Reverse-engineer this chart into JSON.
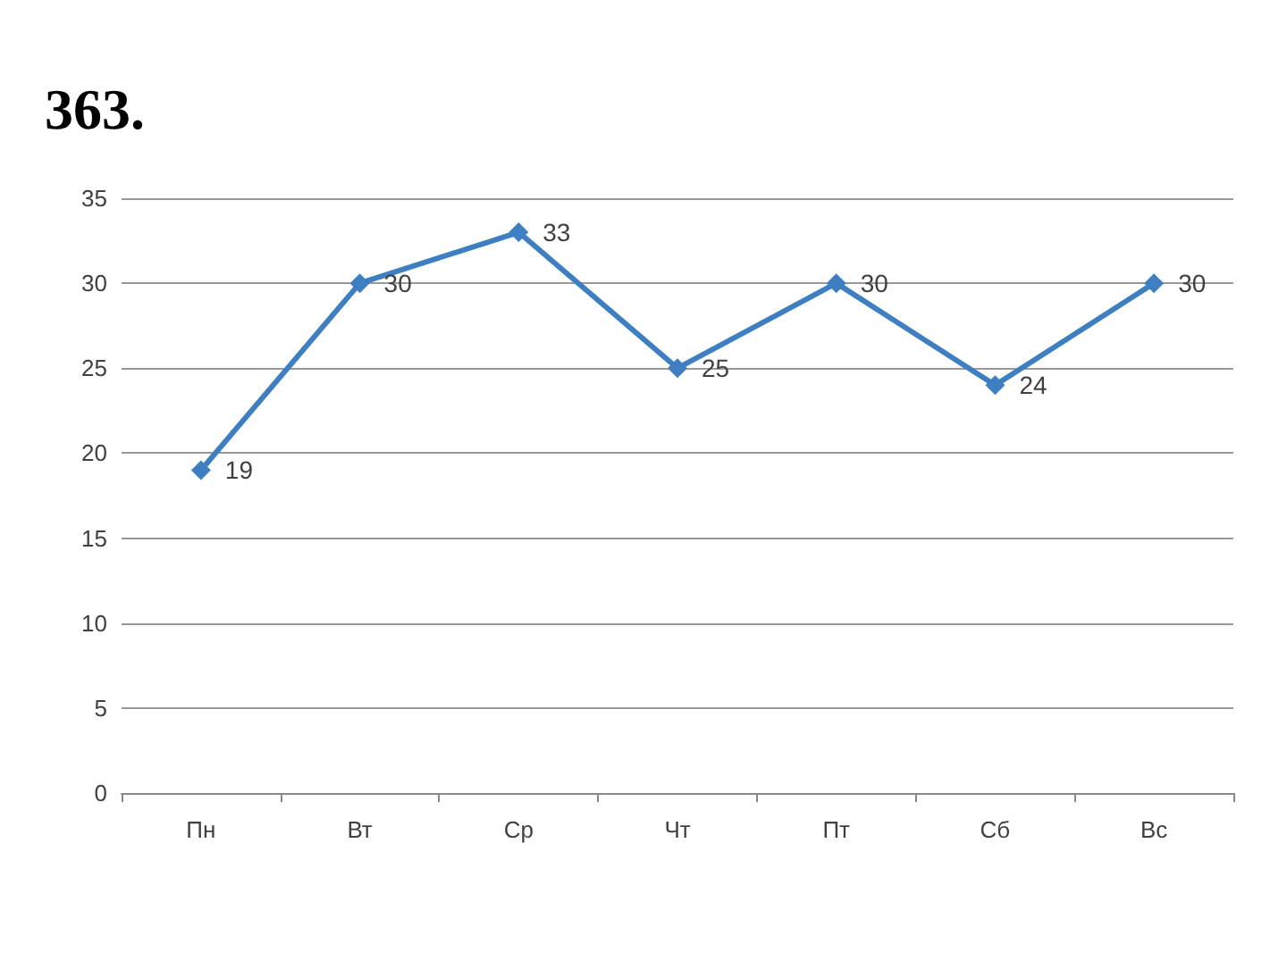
{
  "chart_data": {
    "type": "line",
    "title": "363.",
    "categories": [
      "Пн",
      "Вт",
      "Ср",
      "Чт",
      "Пт",
      "Сб",
      "Вс"
    ],
    "series": [
      {
        "color": "#3d7fc1",
        "values": [
          19,
          30,
          33,
          25,
          30,
          24,
          30
        ]
      }
    ],
    "ylim": [
      0,
      35
    ],
    "yticks": [
      0,
      5,
      10,
      15,
      20,
      25,
      30,
      35
    ],
    "grid": "y",
    "marker": "diamond",
    "line_style": "solid",
    "data_labels": true
  }
}
